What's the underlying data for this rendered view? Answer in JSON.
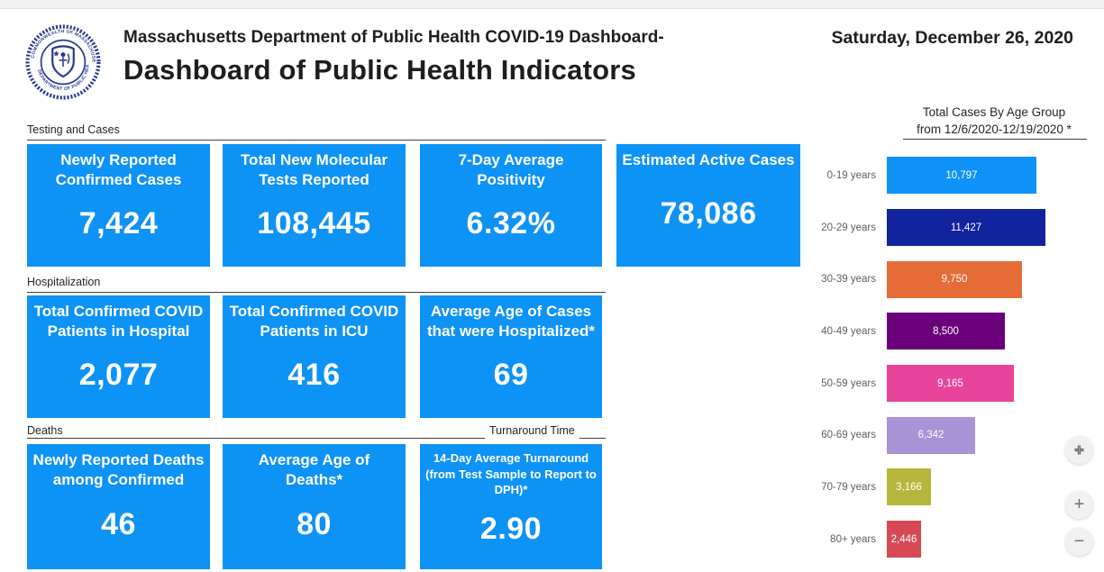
{
  "header": {
    "title_line1": "Massachusetts Department of Public Health COVID-19 Dashboard-",
    "title_line2": "Dashboard of Public Health Indicators",
    "date": "Saturday, December 26, 2020",
    "logo_text_top": "COMMONWEALTH OF MASSACHUSETTS",
    "logo_text_bottom": "DEPARTMENT OF PUBLIC HEALTH"
  },
  "sections": {
    "testing": "Testing and Cases",
    "hospitalization": "Hospitalization",
    "deaths": "Deaths",
    "turnaround": "Turnaround Time"
  },
  "cards": {
    "row1": [
      {
        "title": "Newly Reported Confirmed Cases",
        "value": "7,424"
      },
      {
        "title": "Total New Molecular Tests Reported",
        "value": "108,445"
      },
      {
        "title": "7-Day Average Positivity",
        "value": "6.32%"
      },
      {
        "title": "Estimated Active Cases",
        "value": "78,086"
      }
    ],
    "row2": [
      {
        "title": "Total Confirmed COVID Patients in Hospital",
        "value": "2,077"
      },
      {
        "title": "Total Confirmed COVID Patients in ICU",
        "value": "416"
      },
      {
        "title": "Average Age of Cases that were Hospitalized*",
        "value": "69"
      }
    ],
    "row3": [
      {
        "title": "Newly Reported Deaths among Confirmed",
        "value": "46"
      },
      {
        "title": "Average Age of Deaths*",
        "value": "80"
      },
      {
        "title": "14-Day Average Turnaround (from Test Sample to Report to DPH)*",
        "value": "2.90"
      }
    ]
  },
  "chart_data": {
    "type": "bar",
    "orientation": "horizontal",
    "title": "Total Cases By Age Group",
    "subtitle": "from 12/6/2020-12/19/2020 *",
    "categories": [
      "0-19 years",
      "20-29 years",
      "30-39 years",
      "40-49 years",
      "50-59 years",
      "60-69 years",
      "70-79 years",
      "80+ years"
    ],
    "values": [
      10797,
      11427,
      9750,
      8500,
      9165,
      6342,
      3166,
      2446
    ],
    "value_labels": [
      "10,797",
      "11,427",
      "9,750",
      "8,500",
      "9,165",
      "6,342",
      "3,166",
      "2,446"
    ],
    "bar_colors": [
      "#0e92f8",
      "#12239e",
      "#e66c37",
      "#6b007b",
      "#e8449b",
      "#a992d6",
      "#b6b63c",
      "#d64954"
    ],
    "xlim": [
      0,
      11427
    ],
    "grid": false,
    "legend": "none",
    "data_labels": "inside-center"
  },
  "colors": {
    "card_blue": "#0d92f6",
    "seal_navy": "#2a3a8c",
    "text_dark": "#1f1e1d",
    "label_gray": "#605e5c"
  },
  "zoom_controls": {
    "fit_label": "fit-to-screen",
    "zoom_in": "+",
    "zoom_out": "−"
  }
}
